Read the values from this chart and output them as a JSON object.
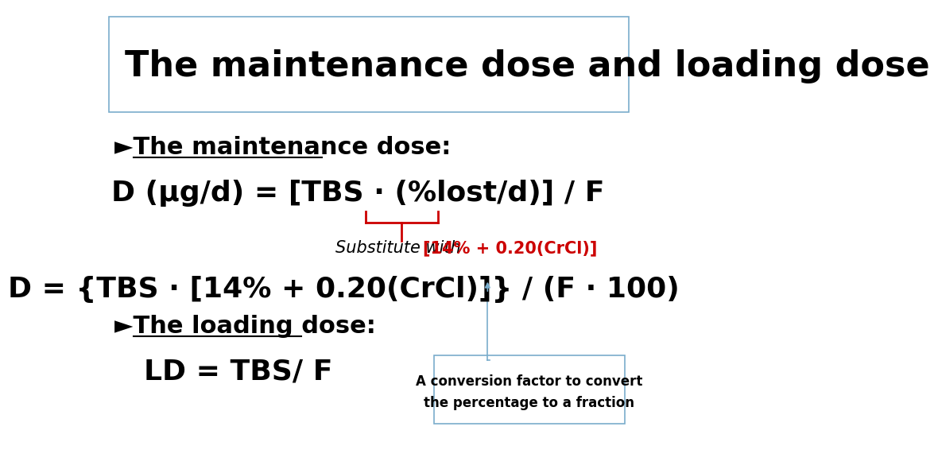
{
  "title": "The maintenance dose and loading dose",
  "bg_color": "#ffffff",
  "title_color": "#000000",
  "title_fontsize": 32,
  "body_fontsize": 22,
  "formula_fontsize": 26,
  "red_color": "#cc0000",
  "black_color": "#000000",
  "blue_color": "#7aadcc",
  "arrow_color": "#7aadcc",
  "box_border_color": "#7aadcc",
  "maintenance_label": "►The maintenance dose:",
  "loading_label": "►The loading dose:",
  "formula1": "D (μg/d) = [TBS · (%lost/d)] / F",
  "substitute_text": "Substitute with ",
  "substitute_red": "[14% + 0.20(CrCl)]",
  "formula2": "D = {TBS · [14% + 0.20(CrCl)]} / (F · 100)",
  "formula3": "LD = TBS/ F",
  "box_text1": "A conversion factor to convert",
  "box_text2": "the percentage to a fraction"
}
